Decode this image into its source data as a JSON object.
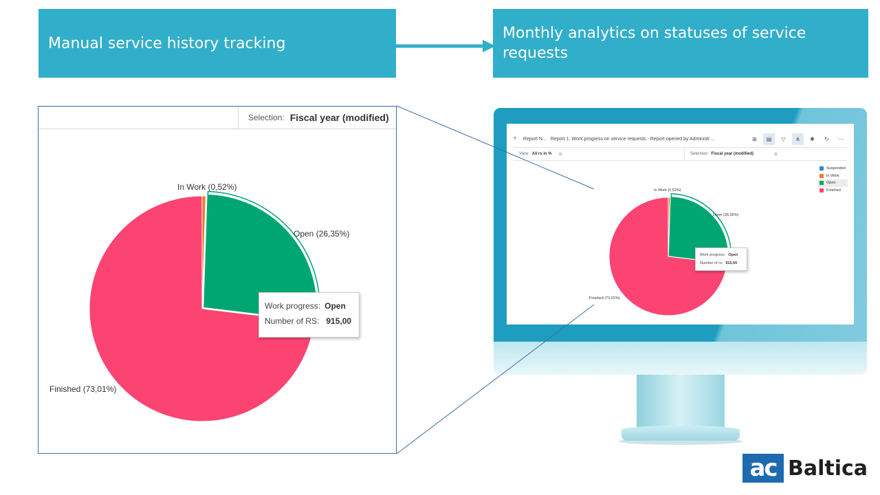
{
  "banners": {
    "left": "Manual service history tracking",
    "right": "Monthly analytics on statuses of service requests"
  },
  "zoom": {
    "selection_label": "Selection:",
    "selection_value": "Fiscal year (modified)",
    "labels": {
      "in_work": "In Work (0,52%)",
      "open": "Open (26,35%)",
      "finished": "Finished (73,01%)"
    },
    "tooltip": {
      "row1_label": "Work progress:",
      "row1_value": "Open",
      "row2_label": "Number of RS:",
      "row2_value": "915,00"
    }
  },
  "screen": {
    "toolbar": {
      "help": "?",
      "short_title": "Report N...",
      "title": "Report 1. Work progress on service requests - Report opened by Administr ...",
      "icons": [
        "grid-icon",
        "document-icon",
        "filter-icon",
        "hierarchy-icon",
        "gear-icon",
        "refresh-icon",
        "more-icon"
      ]
    },
    "view_label": "View:",
    "view_value": "All rs in %",
    "selection_label": "Selection:",
    "selection_value": "Fiscal year (modified)",
    "labels": {
      "in_work": "In Work (0,52%)",
      "open": "Open (26,35%)",
      "finished": "Finished (73,01%)"
    },
    "legend": [
      {
        "label": "Suspended",
        "color": "#2f86c9"
      },
      {
        "label": "In Work",
        "color": "#f07c2c"
      },
      {
        "label": "Open",
        "color": "#00a672"
      },
      {
        "label": "Finished",
        "color": "#fb4472"
      }
    ],
    "tooltip": {
      "row1_label": "Work progress:",
      "row1_value": "Open",
      "row2_label": "Number of rs:",
      "row2_value": "915,00"
    }
  },
  "chart_data": {
    "type": "pie",
    "categories": [
      "Suspended",
      "In Work",
      "Open",
      "Finished"
    ],
    "values": [
      0,
      0.52,
      26.35,
      73.01
    ],
    "colors": [
      "#2f86c9",
      "#f07c2c",
      "#00a672",
      "#fb4472"
    ],
    "selected": "Open"
  },
  "logo": {
    "mark": "ac",
    "name": "Baltica"
  },
  "colors": {
    "banner": "#31aeca",
    "monitor": "#1f9dc0"
  }
}
